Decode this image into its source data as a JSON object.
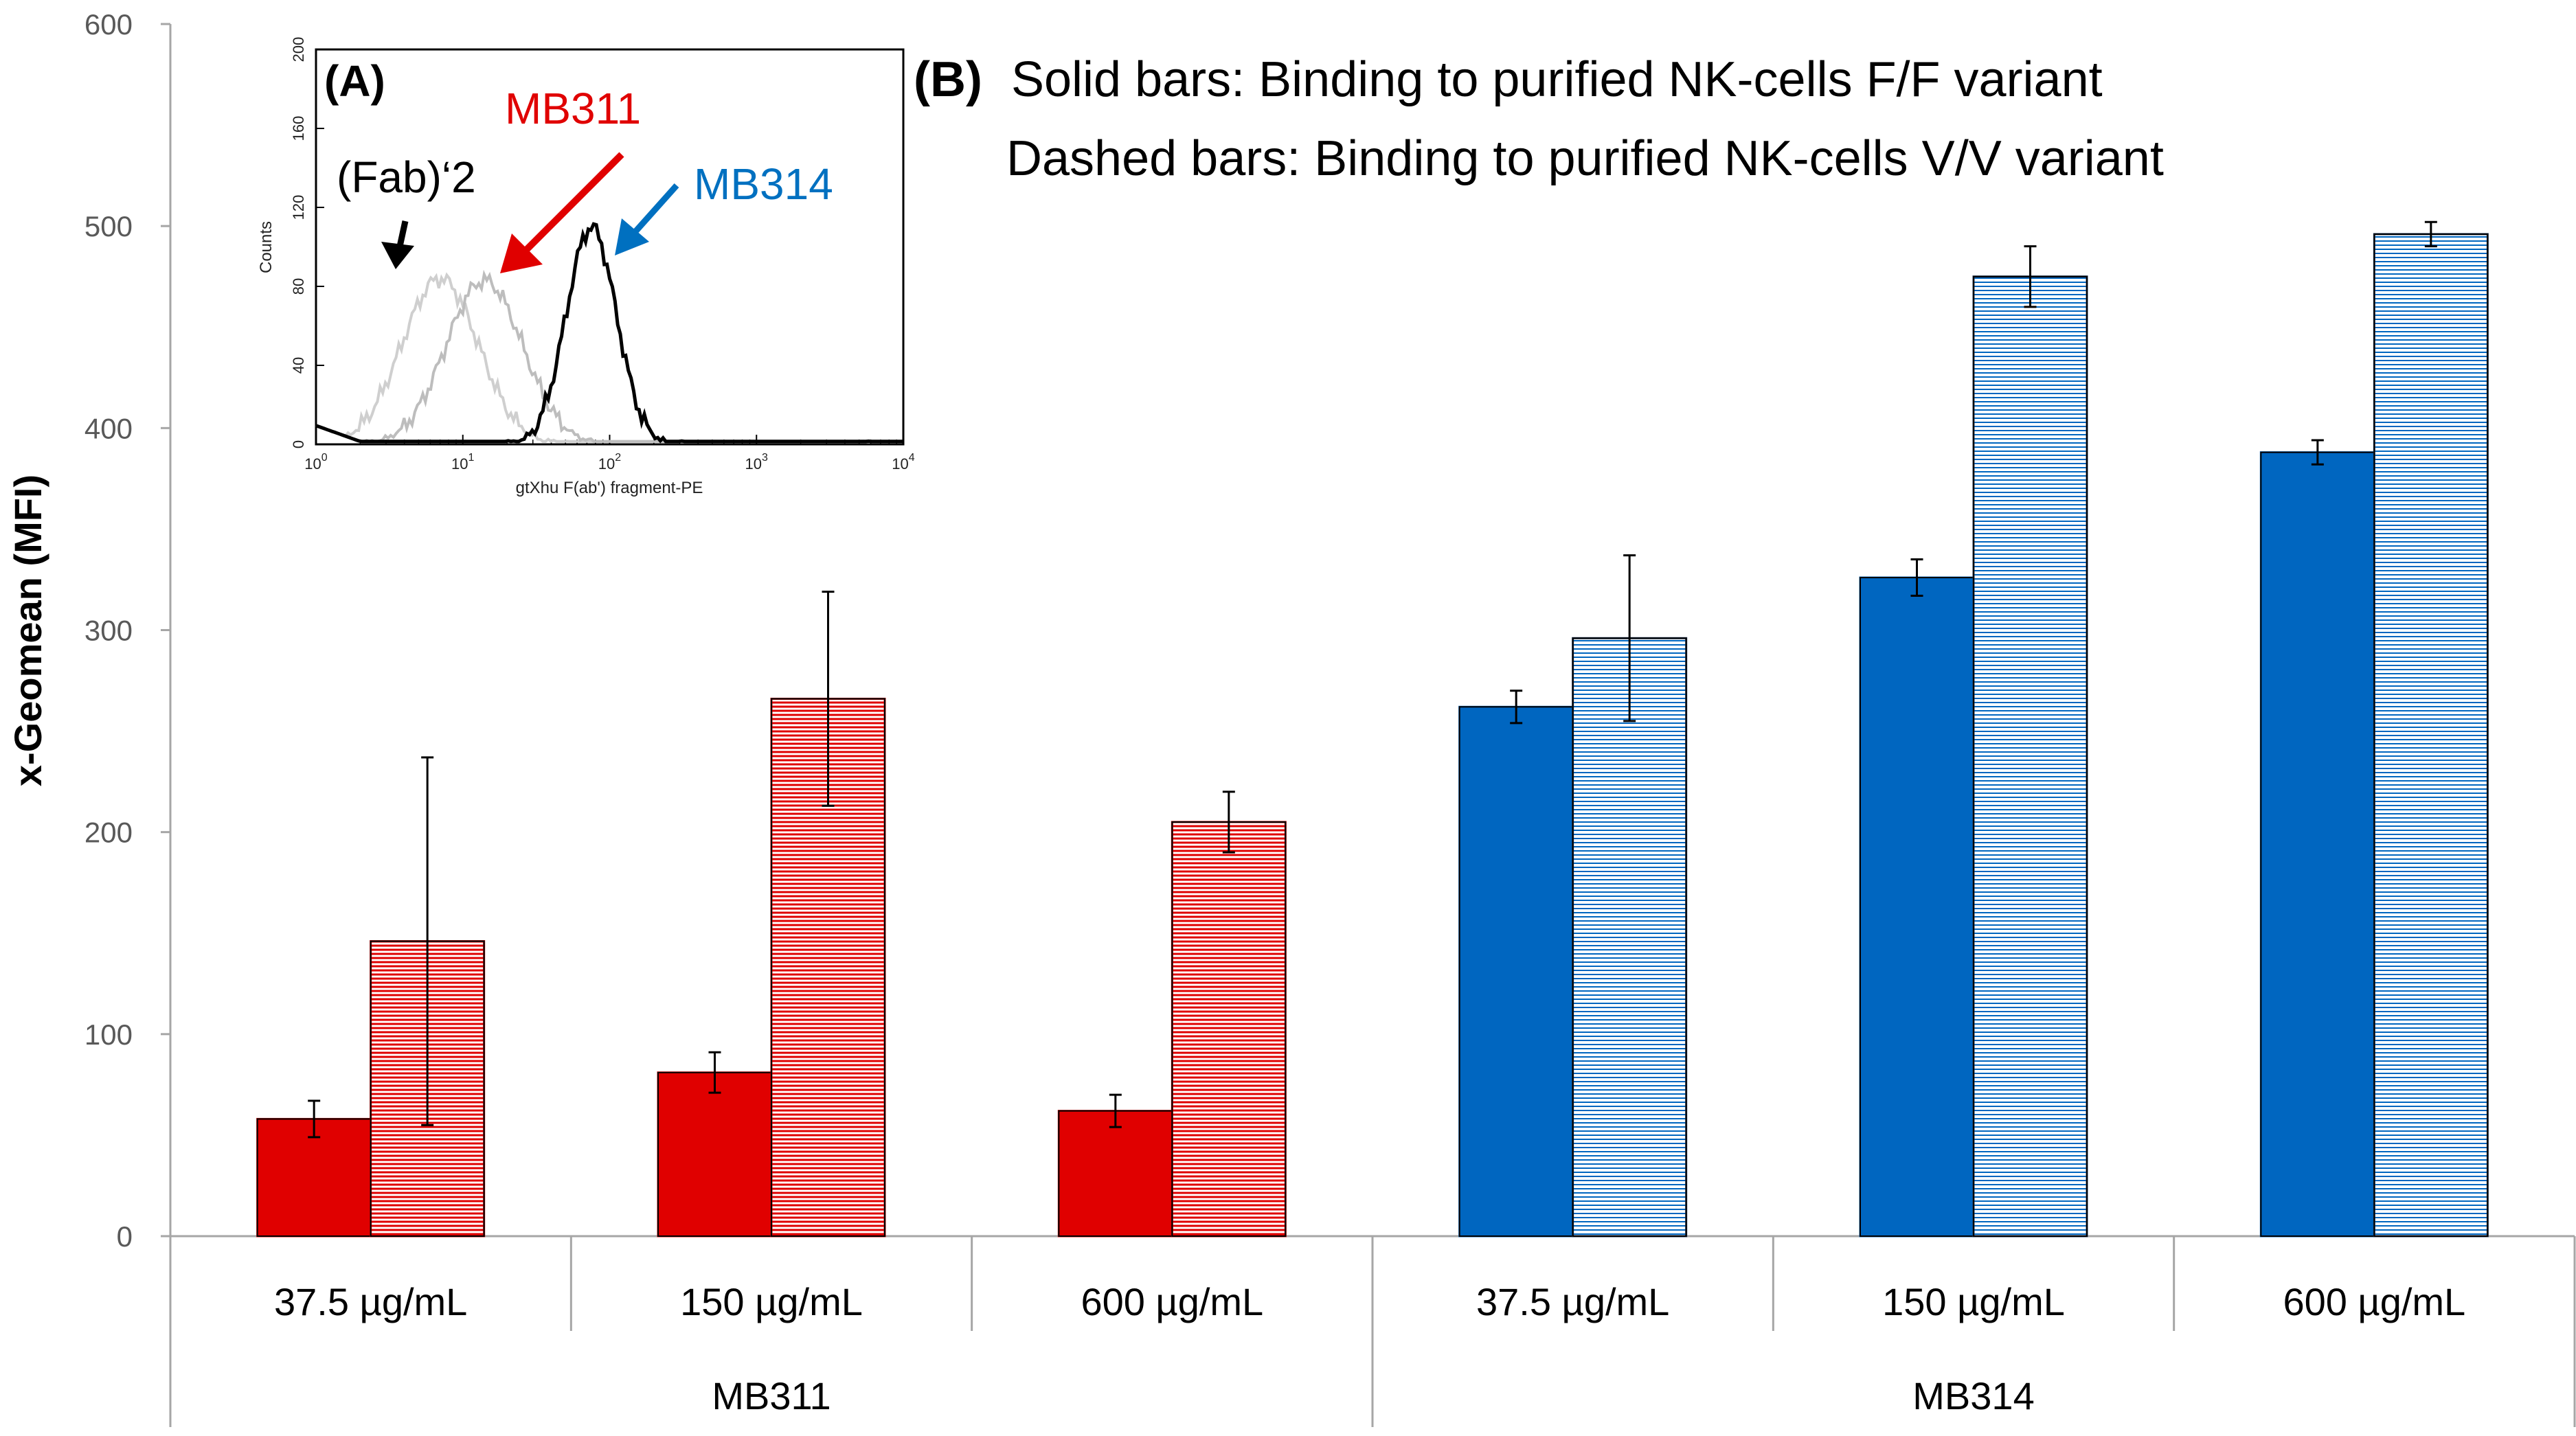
{
  "chart_data": [
    {
      "type": "bar",
      "title": "",
      "ylabel": "x-Geomean (MFI)",
      "xlabel": "",
      "ylim": [
        0,
        600
      ],
      "yticks": [
        0,
        100,
        200,
        300,
        400,
        500,
        600
      ],
      "grid": false,
      "groups": [
        {
          "name": "MB311",
          "color": "#e00000",
          "categories": [
            "37.5 µg/mL",
            "150 µg/mL",
            "600 µg/mL"
          ]
        },
        {
          "name": "MB314",
          "color": "#0066c0",
          "categories": [
            "37.5 µg/mL",
            "150 µg/mL",
            "600 µg/mL"
          ]
        }
      ],
      "series": [
        {
          "name": "Binding to purified NK-cells F/F variant",
          "style": "solid",
          "values": [
            58,
            81,
            62,
            262,
            326,
            388
          ],
          "errors": [
            9,
            10,
            8,
            8,
            9,
            6
          ]
        },
        {
          "name": "Binding to purified NK-cells V/V variant",
          "style": "dashed",
          "values": [
            146,
            266,
            205,
            296,
            475,
            496
          ],
          "errors": [
            91,
            53,
            15,
            41,
            15,
            6
          ]
        }
      ],
      "annotation": {
        "label": "(B)",
        "lines": [
          "Solid bars: Binding to purified NK-cells F/F variant",
          "Dashed bars: Binding to purified NK-cells V/V variant"
        ]
      }
    },
    {
      "type": "line",
      "panel": "(A)",
      "xlabel": "gtXhu F(ab') fragment-PE",
      "ylabel": "Counts",
      "xscale": "log",
      "xlim": [
        1,
        10000
      ],
      "ylim": [
        0,
        200
      ],
      "xticks": [
        {
          "base": "10",
          "exp": "0"
        },
        {
          "base": "10",
          "exp": "1"
        },
        {
          "base": "10",
          "exp": "2"
        },
        {
          "base": "10",
          "exp": "3"
        },
        {
          "base": "10",
          "exp": "4"
        }
      ],
      "yticks": [
        "0",
        "40",
        "80",
        "120",
        "160",
        "200"
      ],
      "series": [
        {
          "name": "(Fab)‘2",
          "color": "#cfcfcf",
          "peak_x": 7,
          "peak_y": 84
        },
        {
          "name": "MB311",
          "color": "#bdbdbd",
          "peak_x": 14,
          "peak_y": 83
        },
        {
          "name": "MB314",
          "color": "#000000",
          "peak_x": 75,
          "peak_y": 110
        }
      ],
      "labels": [
        {
          "text": "(Fab)‘2",
          "color": "#000000"
        },
        {
          "text": "MB311",
          "color": "#e00000"
        },
        {
          "text": "MB314",
          "color": "#0070c0"
        }
      ]
    }
  ]
}
